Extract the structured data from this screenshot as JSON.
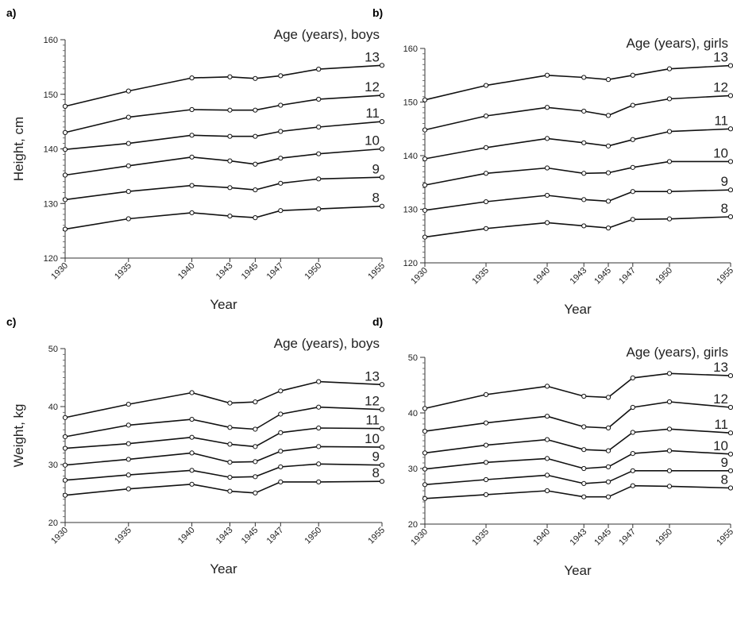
{
  "chart_data": [
    {
      "panel_label": "a)",
      "type": "line",
      "caption": "Age (years), boys",
      "xlabel": "Year",
      "ylabel": "Height, cm",
      "x": [
        1930,
        1935,
        1940,
        1943,
        1945,
        1947,
        1950,
        1955
      ],
      "xticks": [
        "1930",
        "1935",
        "1940",
        "1943",
        "1945",
        "1947",
        "1950",
        "1955"
      ],
      "ylim": [
        120,
        160
      ],
      "yticks": [
        "120",
        "130",
        "140",
        "150",
        "160"
      ],
      "series": [
        {
          "name": "13",
          "values": [
            147.8,
            150.6,
            153.0,
            153.2,
            152.9,
            153.4,
            154.6,
            155.3
          ]
        },
        {
          "name": "12",
          "values": [
            143.0,
            145.8,
            147.2,
            147.1,
            147.1,
            148.0,
            149.1,
            149.8
          ]
        },
        {
          "name": "11",
          "values": [
            139.9,
            141.0,
            142.5,
            142.3,
            142.3,
            143.2,
            144.0,
            145.0
          ]
        },
        {
          "name": "10",
          "values": [
            135.2,
            136.9,
            138.5,
            137.8,
            137.2,
            138.3,
            139.1,
            140.0
          ]
        },
        {
          "name": "9",
          "values": [
            130.7,
            132.2,
            133.3,
            132.9,
            132.5,
            133.7,
            134.5,
            134.8
          ]
        },
        {
          "name": "8",
          "values": [
            125.3,
            127.2,
            128.3,
            127.7,
            127.4,
            128.7,
            129.0,
            129.5
          ]
        }
      ]
    },
    {
      "panel_label": "b)",
      "type": "line",
      "caption": "Age (years), girls",
      "xlabel": "Year",
      "ylabel": "",
      "x": [
        1930,
        1935,
        1940,
        1943,
        1945,
        1947,
        1950,
        1955
      ],
      "xticks": [
        "1930",
        "1935",
        "1940",
        "1943",
        "1945",
        "1947",
        "1950",
        "1955"
      ],
      "ylim": [
        120,
        160
      ],
      "yticks": [
        "120",
        "130",
        "140",
        "150",
        "160"
      ],
      "series": [
        {
          "name": "13",
          "values": [
            150.4,
            153.1,
            155.0,
            154.6,
            154.2,
            155.0,
            156.2,
            156.8
          ]
        },
        {
          "name": "12",
          "values": [
            144.8,
            147.4,
            149.0,
            148.3,
            147.5,
            149.4,
            150.6,
            151.2
          ]
        },
        {
          "name": "11",
          "values": [
            139.4,
            141.5,
            143.2,
            142.4,
            141.8,
            143.0,
            144.5,
            145.0
          ]
        },
        {
          "name": "10",
          "values": [
            134.5,
            136.7,
            137.7,
            136.7,
            136.8,
            137.8,
            138.9,
            138.9
          ]
        },
        {
          "name": "9",
          "values": [
            129.8,
            131.4,
            132.6,
            131.8,
            131.5,
            133.3,
            133.3,
            133.6
          ]
        },
        {
          "name": "8",
          "values": [
            124.8,
            126.4,
            127.5,
            126.9,
            126.5,
            128.1,
            128.2,
            128.6
          ]
        }
      ]
    },
    {
      "panel_label": "c)",
      "type": "line",
      "caption": "Age (years), boys",
      "xlabel": "Year",
      "ylabel": "Weight, kg",
      "x": [
        1930,
        1935,
        1940,
        1943,
        1945,
        1947,
        1950,
        1955
      ],
      "xticks": [
        "1930",
        "1935",
        "1940",
        "1943",
        "1945",
        "1947",
        "1950",
        "1955"
      ],
      "ylim": [
        20,
        50
      ],
      "yticks": [
        "20",
        "30",
        "40",
        "50"
      ],
      "series": [
        {
          "name": "13",
          "values": [
            38.1,
            40.4,
            42.4,
            40.6,
            40.8,
            42.7,
            44.3,
            43.8
          ]
        },
        {
          "name": "12",
          "values": [
            34.8,
            36.8,
            37.8,
            36.4,
            36.1,
            38.7,
            39.9,
            39.5
          ]
        },
        {
          "name": "11",
          "values": [
            32.8,
            33.6,
            34.7,
            33.5,
            33.1,
            35.5,
            36.3,
            36.2
          ]
        },
        {
          "name": "10",
          "values": [
            29.9,
            30.9,
            32.0,
            30.4,
            30.5,
            32.3,
            33.1,
            33.0
          ]
        },
        {
          "name": "9",
          "values": [
            27.3,
            28.2,
            29.0,
            27.8,
            27.9,
            29.6,
            30.1,
            29.9
          ]
        },
        {
          "name": "8",
          "values": [
            24.7,
            25.8,
            26.6,
            25.4,
            25.1,
            27.0,
            27.0,
            27.1
          ]
        }
      ]
    },
    {
      "panel_label": "d)",
      "type": "line",
      "caption": "Age (years), girls",
      "xlabel": "Year",
      "ylabel": "",
      "x": [
        1930,
        1935,
        1940,
        1943,
        1945,
        1947,
        1950,
        1955
      ],
      "xticks": [
        "1930",
        "1935",
        "1940",
        "1943",
        "1945",
        "1947",
        "1950",
        "1955"
      ],
      "ylim": [
        20,
        50
      ],
      "yticks": [
        "20",
        "30",
        "40",
        "50"
      ],
      "series": [
        {
          "name": "13",
          "values": [
            40.8,
            43.3,
            44.8,
            43.0,
            42.8,
            46.3,
            47.1,
            46.7
          ]
        },
        {
          "name": "12",
          "values": [
            36.7,
            38.2,
            39.4,
            37.5,
            37.3,
            41.0,
            42.0,
            41.0
          ]
        },
        {
          "name": "11",
          "values": [
            32.8,
            34.2,
            35.2,
            33.4,
            33.2,
            36.5,
            37.1,
            36.4
          ]
        },
        {
          "name": "10",
          "values": [
            29.9,
            31.1,
            31.8,
            30.0,
            30.3,
            32.7,
            33.2,
            32.6
          ]
        },
        {
          "name": "9",
          "values": [
            27.1,
            28.0,
            28.8,
            27.3,
            27.6,
            29.6,
            29.6,
            29.6
          ]
        },
        {
          "name": "8",
          "values": [
            24.6,
            25.3,
            26.0,
            24.9,
            24.9,
            26.9,
            26.8,
            26.5
          ]
        }
      ]
    }
  ]
}
